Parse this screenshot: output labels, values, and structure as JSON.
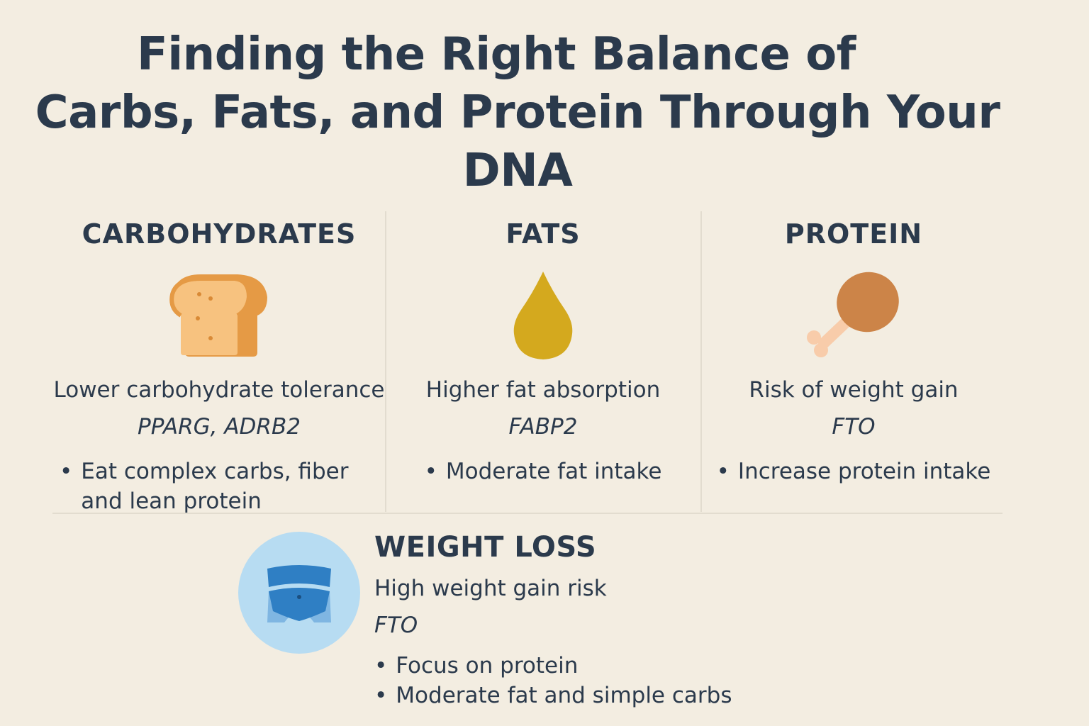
{
  "title": {
    "line1": "Finding the Right Balance of",
    "line2": "Carbs, Fats, and Protein Through Your",
    "line3": "DNA"
  },
  "columns": [
    {
      "heading": "CARBOHYDRATES",
      "icon": "bread-icon",
      "description": "Lower carbohydrate tolerance",
      "genes": "PPARG, ADRB2",
      "tip": "Eat complex carbs, fiber and lean protein"
    },
    {
      "heading": "FATS",
      "icon": "oil-drop-icon",
      "description": "Higher fat absorption",
      "genes": "FABP2",
      "tip": "Moderate fat intake"
    },
    {
      "heading": "PROTEIN",
      "icon": "chicken-leg-icon",
      "description": "Risk of weight gain",
      "genes": "FTO",
      "tip": "Increase protein intake"
    }
  ],
  "weight_loss": {
    "heading": "WEIGHT LOSS",
    "icon": "waist-icon",
    "description": "High weight gain risk",
    "genes": "FTO",
    "tips": [
      "Focus on protein",
      "Moderate fat and simple carbs"
    ]
  },
  "bullet": "•",
  "colors": {
    "background": "#f3ede1",
    "text": "#2b3a4c",
    "bread": "#e59a45",
    "oil": "#d4a91e",
    "chicken": "#cc8448",
    "waist_circle": "#b7dcf2",
    "waist_band": "#2f7fc4"
  }
}
